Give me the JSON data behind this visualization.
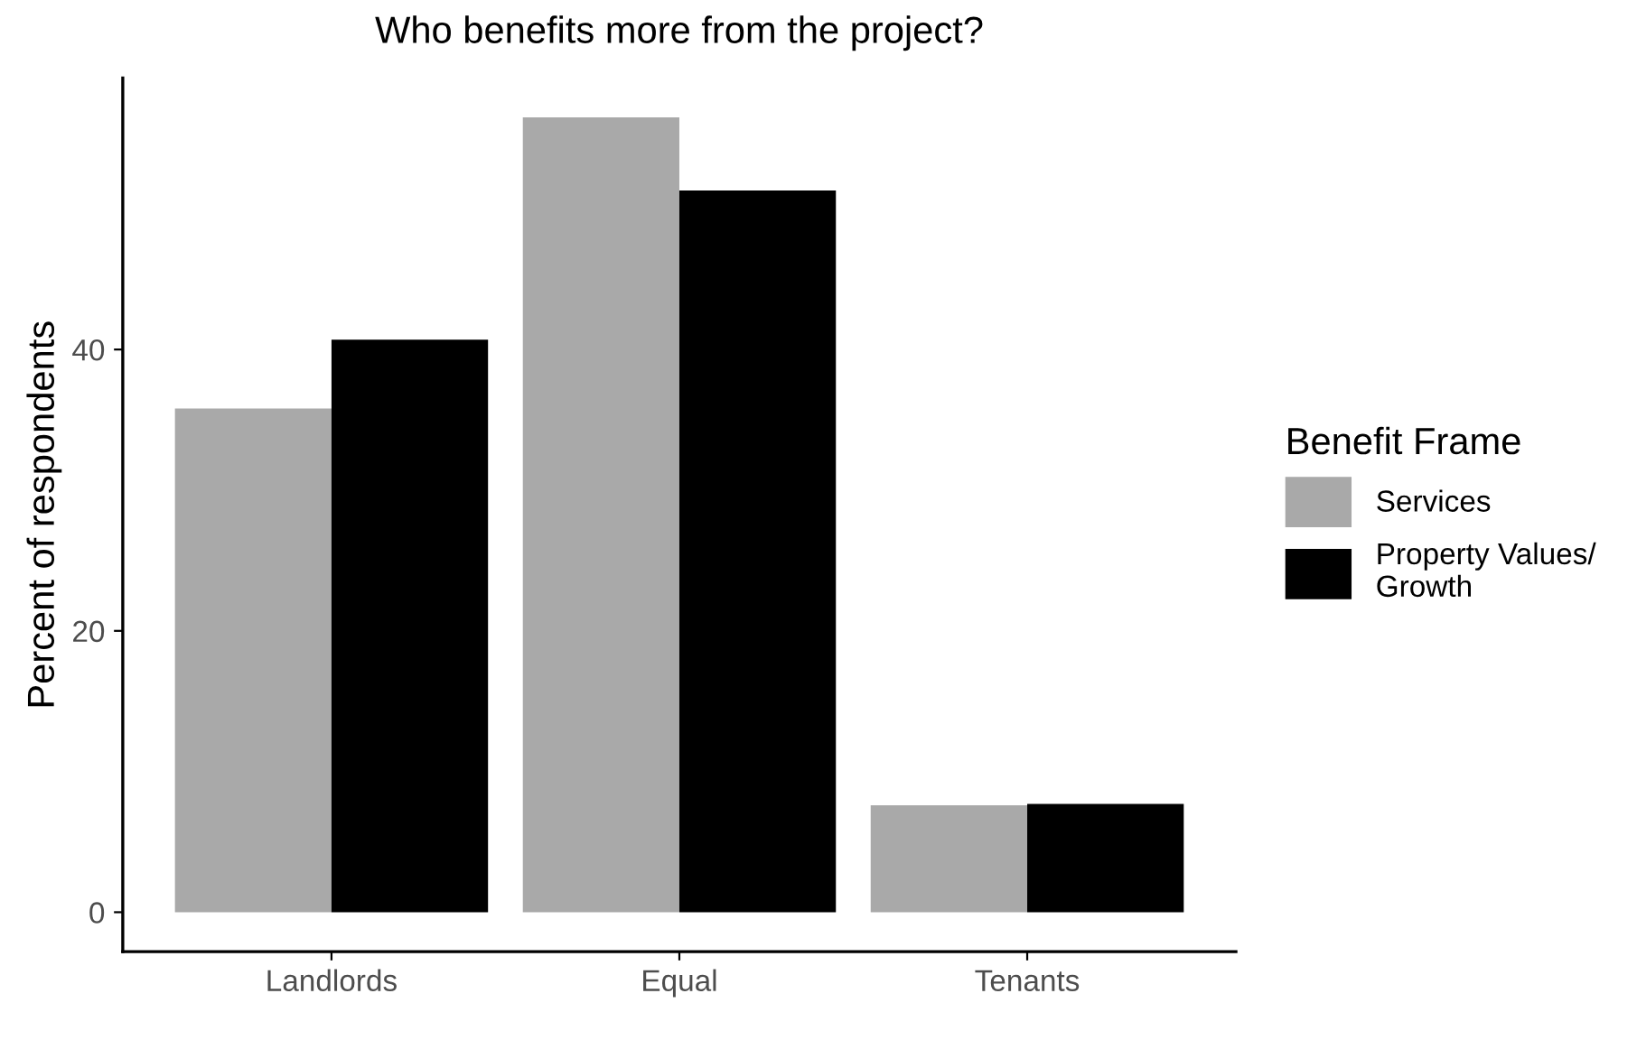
{
  "chart_data": {
    "type": "bar",
    "title": "Who benefits more from the project?",
    "ylabel": "Percent of respondents",
    "legend_title": "Benefit Frame",
    "categories": [
      "Landlords",
      "Equal",
      "Tenants"
    ],
    "series": [
      {
        "name": "Services",
        "color": "#a9a9a9",
        "values": [
          35.8,
          56.5,
          7.6
        ]
      },
      {
        "name": "Property Values/\nGrowth",
        "color": "#000000",
        "values": [
          40.7,
          51.3,
          7.7
        ]
      }
    ],
    "ylim": [
      -2.8,
      59.3
    ],
    "yticks": [
      0,
      20,
      40
    ],
    "grid": false,
    "legend": "right"
  }
}
